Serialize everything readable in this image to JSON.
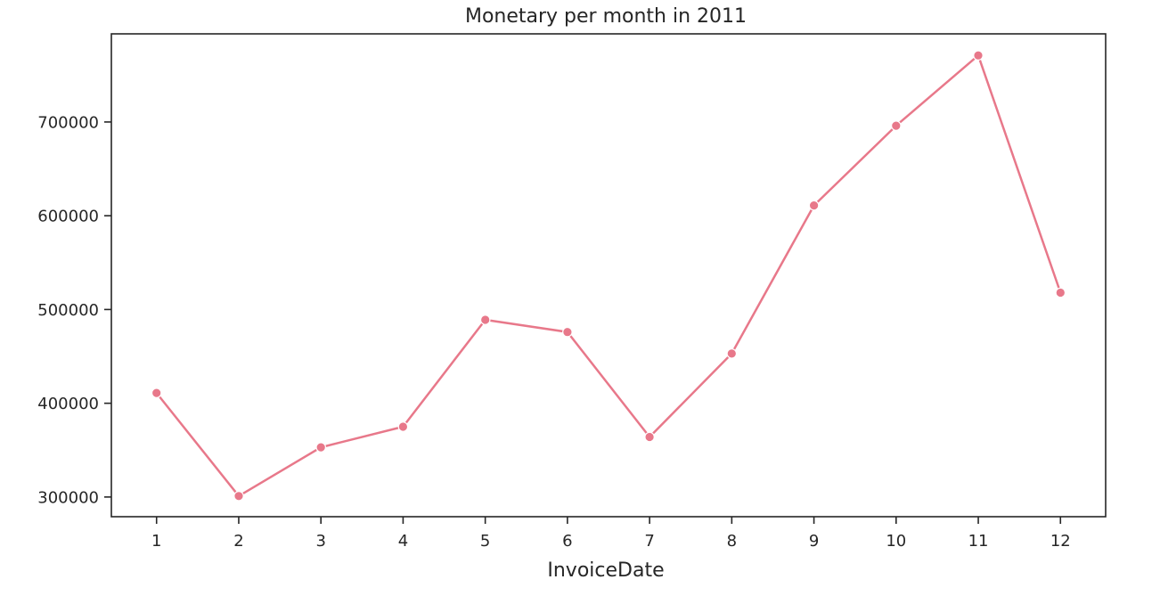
{
  "chart_data": {
    "type": "line",
    "title": "Monetary per month in 2011",
    "xlabel": "InvoiceDate",
    "ylabel": "",
    "x": [
      1,
      2,
      3,
      4,
      5,
      6,
      7,
      8,
      9,
      10,
      11,
      12
    ],
    "categories": [
      "1",
      "2",
      "3",
      "4",
      "5",
      "6",
      "7",
      "8",
      "9",
      "10",
      "11",
      "12"
    ],
    "series": [
      {
        "values": [
          411000,
          301000,
          353000,
          375000,
          489000,
          476000,
          364000,
          453000,
          611000,
          696000,
          771000,
          518000
        ],
        "color": "#e8788a",
        "marker": "circle"
      }
    ],
    "xlim": [
      0.45,
      12.55
    ],
    "ylim": [
      279000,
      794000
    ],
    "yticks": [
      300000,
      400000,
      500000,
      600000,
      700000
    ],
    "ytick_labels": [
      "300000",
      "400000",
      "500000",
      "600000",
      "700000"
    ],
    "grid": false,
    "legend": "none"
  }
}
